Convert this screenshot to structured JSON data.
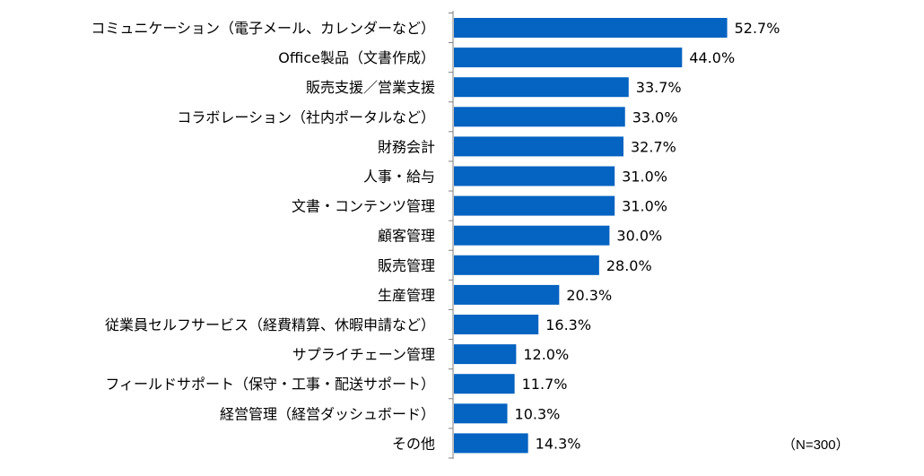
{
  "chart_data": {
    "type": "bar",
    "orientation": "horizontal",
    "categories": [
      "コミュニケーション（電子メール、カレンダーなど）",
      "Office製品（文書作成）",
      "販売支援／営業支援",
      "コラボレーション（社内ポータルなど）",
      "財務会計",
      "人事・給与",
      "文書・コンテンツ管理",
      "顧客管理",
      "販売管理",
      "生産管理",
      "従業員セルフサービス（経費精算、休暇申請など）",
      "サプライチェーン管理",
      "フィールドサポート（保守・工事・配送サポート）",
      "経営管理（経営ダッシュボード）",
      "その他"
    ],
    "values": [
      52.7,
      44.0,
      33.7,
      33.0,
      32.7,
      31.0,
      31.0,
      30.0,
      28.0,
      20.3,
      16.3,
      12.0,
      11.7,
      10.3,
      14.3
    ],
    "value_labels": [
      "52.7%",
      "44.0%",
      "33.7%",
      "33.0%",
      "32.7%",
      "31.0%",
      "31.0%",
      "30.0%",
      "28.0%",
      "20.3%",
      "16.3%",
      "12.0%",
      "11.7%",
      "10.3%",
      "14.3%"
    ],
    "xlim": [
      0,
      100
    ],
    "grid": false,
    "legend": "none",
    "bar_color": "#0563c1",
    "note": "（N=300）"
  }
}
